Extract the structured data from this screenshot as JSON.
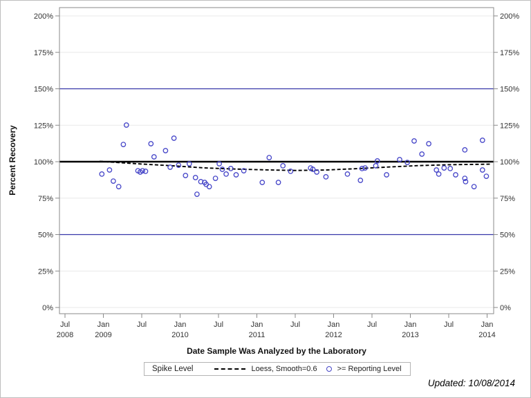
{
  "figure": {
    "updated_note": "Updated: 10/08/2014"
  },
  "chart_data": {
    "type": "scatter",
    "title": "",
    "xlabel": "Date Sample Was Analyzed by the Laboratory",
    "ylabel": "Percent Recovery",
    "grid": true,
    "ylim": [
      0,
      200
    ],
    "y_tick_step": 25,
    "y_ticks": [
      {
        "label": "0%",
        "value": 0
      },
      {
        "label": "25%",
        "value": 25
      },
      {
        "label": "50%",
        "value": 50
      },
      {
        "label": "75%",
        "value": 75
      },
      {
        "label": "100%",
        "value": 100
      },
      {
        "label": "125%",
        "value": 125
      },
      {
        "label": "150%",
        "value": 150
      },
      {
        "label": "175%",
        "value": 175
      },
      {
        "label": "200%",
        "value": 200
      }
    ],
    "x_ticks": [
      {
        "month": "Jul",
        "year": "2008",
        "value": 2008.5
      },
      {
        "month": "Jan",
        "year": "2009",
        "value": 2009.0
      },
      {
        "month": "Jul",
        "year": "",
        "value": 2009.5
      },
      {
        "month": "Jan",
        "year": "2010",
        "value": 2010.0
      },
      {
        "month": "Jul",
        "year": "",
        "value": 2010.5
      },
      {
        "month": "Jan",
        "year": "2011",
        "value": 2011.0
      },
      {
        "month": "Jul",
        "year": "",
        "value": 2011.5
      },
      {
        "month": "Jan",
        "year": "2012",
        "value": 2012.0
      },
      {
        "month": "Jul",
        "year": "",
        "value": 2012.5
      },
      {
        "month": "Jan",
        "year": "2013",
        "value": 2013.0
      },
      {
        "month": "Jul",
        "year": "",
        "value": 2013.5
      },
      {
        "month": "Jan",
        "year": "2014",
        "value": 2014.0
      }
    ],
    "reference_lines": [
      {
        "value": 50,
        "color": "#3535a8",
        "width": 1.2
      },
      {
        "value": 150,
        "color": "#3535a8",
        "width": 1.2
      },
      {
        "value": 100,
        "color": "#000000",
        "width": 2.6
      }
    ],
    "colors": {
      "marker": "#4545c8",
      "loess": "#000000",
      "gridline": "#e8e8e8",
      "axis": "#8a8a8a",
      "tick_text": "#333333"
    },
    "series": [
      {
        "name": ">= Reporting Level",
        "type": "scatter",
        "marker": "open-circle",
        "points": [
          [
            2008.98,
            91.5
          ],
          [
            2009.08,
            94.3
          ],
          [
            2009.13,
            86.7
          ],
          [
            2009.2,
            82.9
          ],
          [
            2009.26,
            111.8
          ],
          [
            2009.3,
            125.1
          ],
          [
            2009.45,
            93.8
          ],
          [
            2009.48,
            92.9
          ],
          [
            2009.51,
            93.8
          ],
          [
            2009.55,
            93.4
          ],
          [
            2009.62,
            112.3
          ],
          [
            2009.66,
            103.3
          ],
          [
            2009.81,
            107.6
          ],
          [
            2009.87,
            96.2
          ],
          [
            2009.92,
            116.1
          ],
          [
            2009.98,
            97.6
          ],
          [
            2010.07,
            90.5
          ],
          [
            2010.12,
            98.6
          ],
          [
            2010.2,
            89.1
          ],
          [
            2010.22,
            77.7
          ],
          [
            2010.27,
            86.3
          ],
          [
            2010.32,
            85.8
          ],
          [
            2010.34,
            84.4
          ],
          [
            2010.38,
            82.9
          ],
          [
            2010.46,
            88.6
          ],
          [
            2010.51,
            98.6
          ],
          [
            2010.55,
            94.8
          ],
          [
            2010.6,
            91.5
          ],
          [
            2010.66,
            95.3
          ],
          [
            2010.73,
            91.0
          ],
          [
            2010.83,
            93.8
          ],
          [
            2011.07,
            85.8
          ],
          [
            2011.16,
            102.8
          ],
          [
            2011.28,
            85.8
          ],
          [
            2011.34,
            97.2
          ],
          [
            2011.44,
            93.4
          ],
          [
            2011.7,
            95.7
          ],
          [
            2011.73,
            94.8
          ],
          [
            2011.78,
            92.9
          ],
          [
            2011.9,
            89.6
          ],
          [
            2012.18,
            91.5
          ],
          [
            2012.35,
            87.2
          ],
          [
            2012.37,
            95.3
          ],
          [
            2012.41,
            95.7
          ],
          [
            2012.55,
            97.2
          ],
          [
            2012.57,
            100.5
          ],
          [
            2012.69,
            91.0
          ],
          [
            2012.86,
            101.4
          ],
          [
            2012.96,
            99.5
          ],
          [
            2013.05,
            114.2
          ],
          [
            2013.15,
            105.2
          ],
          [
            2013.24,
            112.3
          ],
          [
            2013.34,
            94.3
          ],
          [
            2013.37,
            91.5
          ],
          [
            2013.44,
            95.7
          ],
          [
            2013.52,
            95.3
          ],
          [
            2013.59,
            91.0
          ],
          [
            2013.71,
            108.1
          ],
          [
            2013.71,
            88.6
          ],
          [
            2013.72,
            86.3
          ],
          [
            2013.83,
            82.9
          ],
          [
            2013.94,
            114.7
          ],
          [
            2013.94,
            94.3
          ],
          [
            2013.99,
            90.0
          ]
        ]
      },
      {
        "name": "Loess, Smooth=0.6",
        "type": "line",
        "dashed": true,
        "points": [
          [
            2008.95,
            100.3
          ],
          [
            2009.2,
            99.4
          ],
          [
            2009.5,
            98.4
          ],
          [
            2009.9,
            97.2
          ],
          [
            2010.3,
            95.8
          ],
          [
            2010.7,
            95.0
          ],
          [
            2011.1,
            94.4
          ],
          [
            2011.5,
            94.0
          ],
          [
            2011.9,
            94.3
          ],
          [
            2012.3,
            95.2
          ],
          [
            2012.7,
            96.3
          ],
          [
            2013.1,
            97.3
          ],
          [
            2013.5,
            97.9
          ],
          [
            2013.9,
            98.2
          ],
          [
            2014.04,
            98.3
          ]
        ]
      }
    ],
    "legend": {
      "title": "Spike Level",
      "position": "bottom-center",
      "entries": [
        {
          "symbol": "dashed-line",
          "label": "Loess, Smooth=0.6"
        },
        {
          "symbol": "open-circle",
          "label": ">= Reporting Level"
        }
      ]
    }
  }
}
